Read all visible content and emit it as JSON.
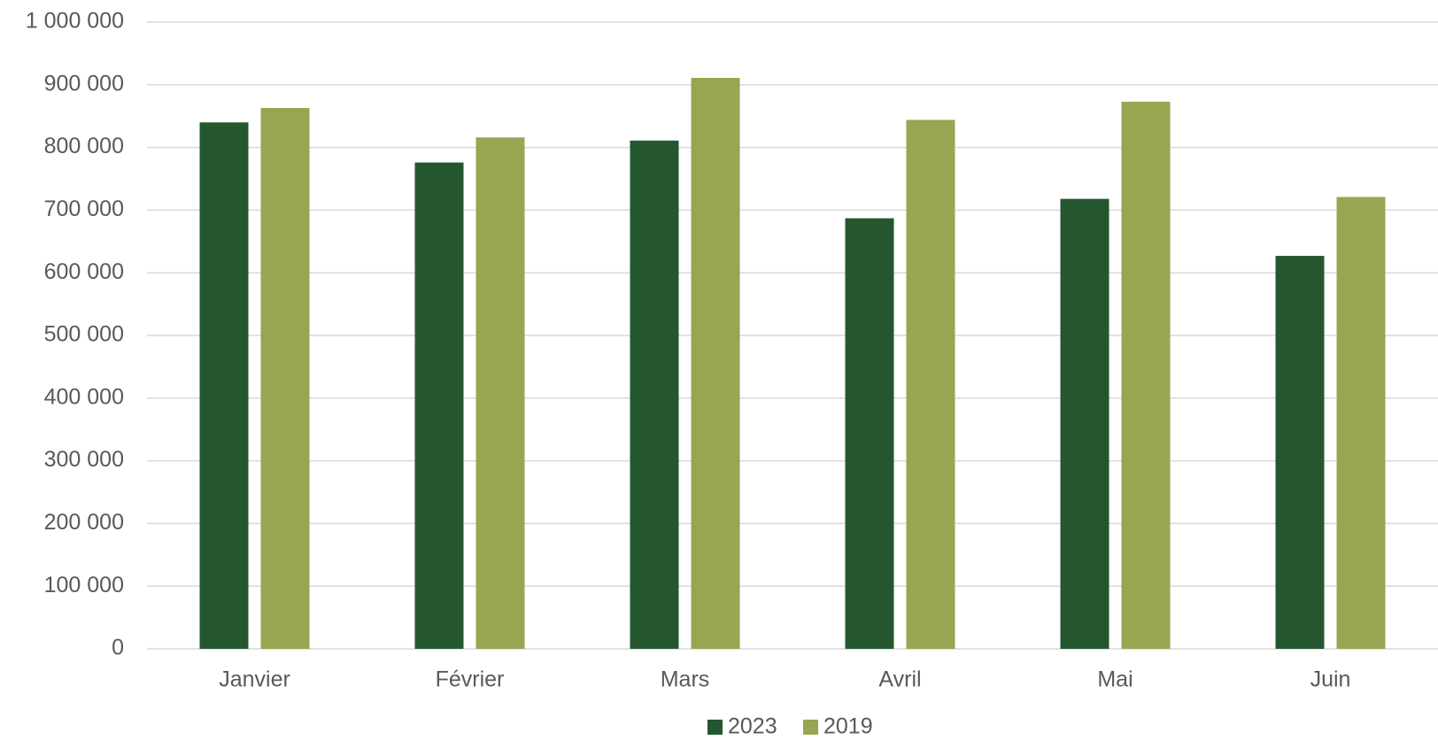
{
  "chart_data": {
    "type": "bar",
    "categories": [
      "Janvier",
      "Février",
      "Mars",
      "Avril",
      "Mai",
      "Juin"
    ],
    "series": [
      {
        "name": "2023",
        "color": "#245730",
        "values": [
          840000,
          776000,
          811000,
          687000,
          718000,
          627000
        ]
      },
      {
        "name": "2019",
        "color": "#97a651",
        "values": [
          863000,
          816000,
          911000,
          844000,
          873000,
          721000
        ]
      }
    ],
    "ylim": [
      0,
      1000000
    ],
    "yticks": [
      0,
      {
        "value": 100000,
        "label": "100 000"
      },
      {
        "value": 200000,
        "label": "200 000"
      },
      {
        "value": 300000,
        "label": "300 000"
      },
      {
        "value": 400000,
        "label": "400 000"
      },
      {
        "value": 500000,
        "label": "500 000"
      },
      {
        "value": 600000,
        "label": "600 000"
      },
      {
        "value": 700000,
        "label": "700 000"
      },
      {
        "value": 800000,
        "label": "800 000"
      },
      {
        "value": 900000,
        "label": "900 000"
      },
      {
        "value": 1000000,
        "label": "1 000 000"
      }
    ],
    "grid": true,
    "legend": "bottom"
  }
}
